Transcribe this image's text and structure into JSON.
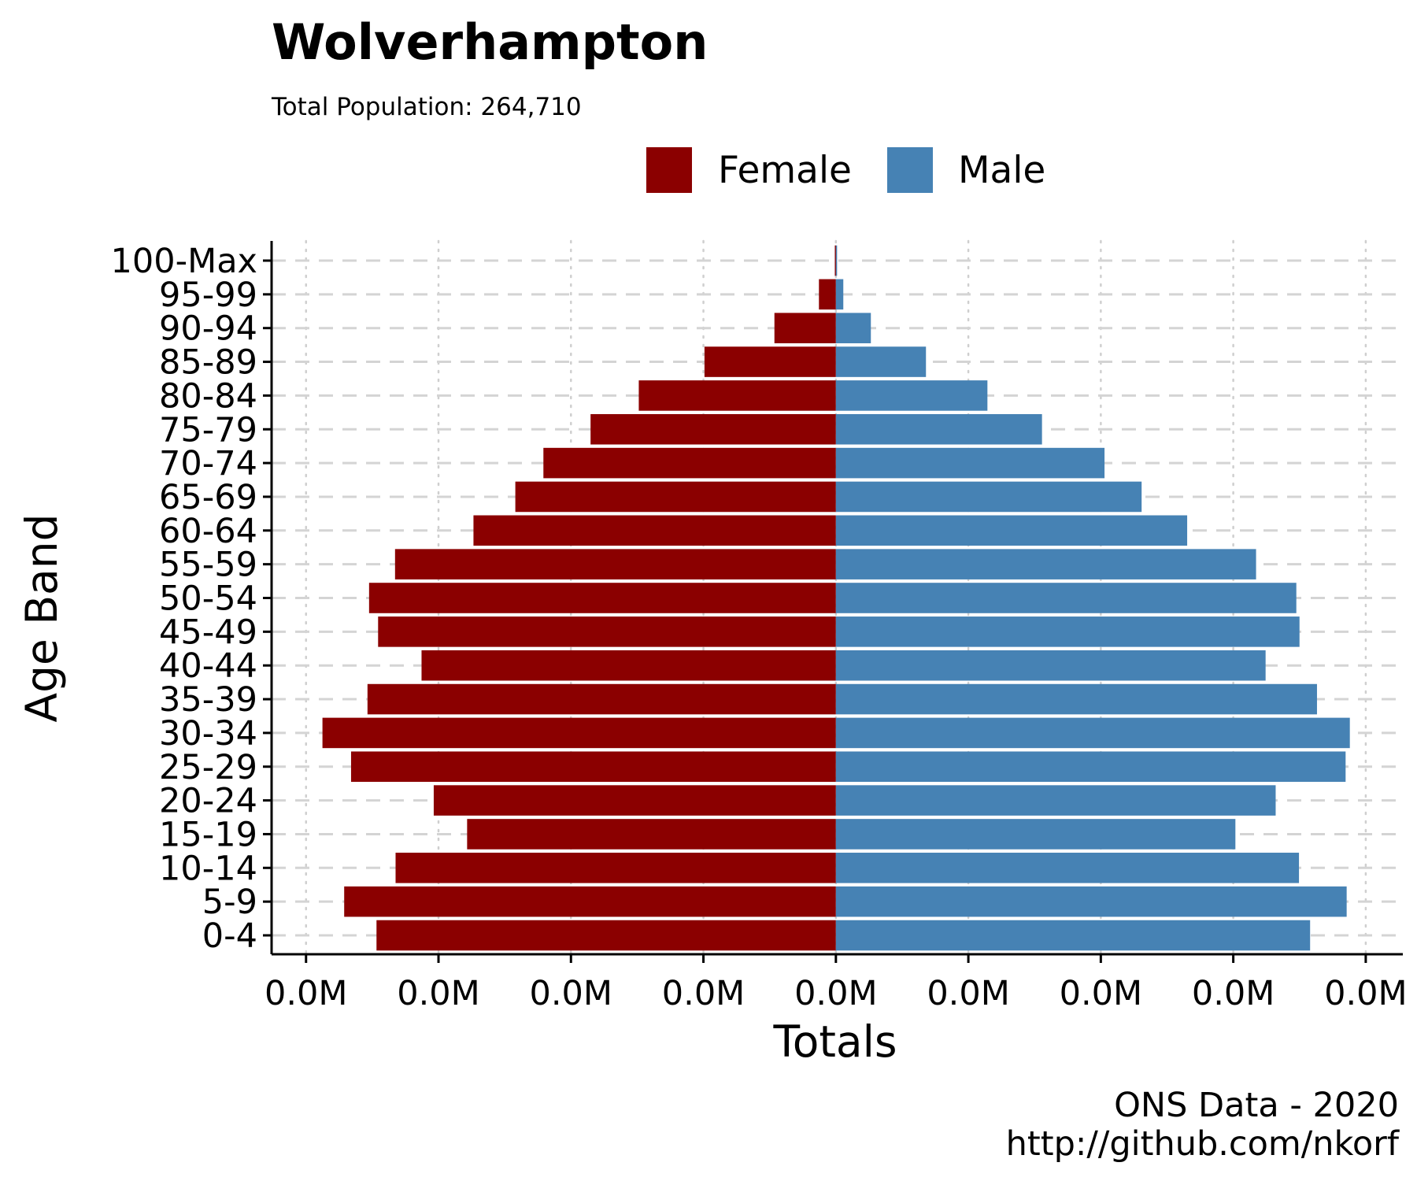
{
  "chart_data": {
    "type": "bar",
    "orientation": "horizontal",
    "title": "Wolverhampton",
    "subtitle": "Total Population:  264,710",
    "xlabel": "Totals",
    "ylabel": "Age Band",
    "caption_lines": [
      "ONS Data - 2020",
      "http://github.com/nkorf"
    ],
    "categories": [
      "0-4",
      "5-9",
      "10-14",
      "15-19",
      "20-24",
      "25-29",
      "30-34",
      "35-39",
      "40-44",
      "45-49",
      "50-54",
      "55-59",
      "60-64",
      "65-69",
      "70-74",
      "75-79",
      "80-84",
      "85-89",
      "90-94",
      "95-99",
      "100-Max"
    ],
    "x_tick_labels": [
      "0.0M",
      "0.0M",
      "0.0M",
      "0.0M",
      "0.0M",
      "0.0M",
      "0.0M",
      "0.0M",
      "0.0M"
    ],
    "x_tick_values": [
      -10000,
      -7500,
      -5000,
      -2500,
      0,
      2500,
      5000,
      7500,
      10000
    ],
    "xlim": [
      -10650,
      10700
    ],
    "grid": true,
    "legend_position": "top",
    "series": [
      {
        "name": "Female",
        "color": "#8B0000",
        "values": [
          -8670,
          -9280,
          -8310,
          -6960,
          -7590,
          -9150,
          -9690,
          -8840,
          -7820,
          -8640,
          -8810,
          -8320,
          -6840,
          -6050,
          -5520,
          -4630,
          -3720,
          -2480,
          -1160,
          -320,
          -20
        ]
      },
      {
        "name": "Male",
        "color": "#4682B4",
        "values": [
          8950,
          9640,
          8740,
          7540,
          8300,
          9620,
          9700,
          9080,
          8110,
          8750,
          8690,
          7930,
          6630,
          5770,
          5070,
          3890,
          2860,
          1700,
          660,
          140,
          10
        ]
      }
    ]
  }
}
